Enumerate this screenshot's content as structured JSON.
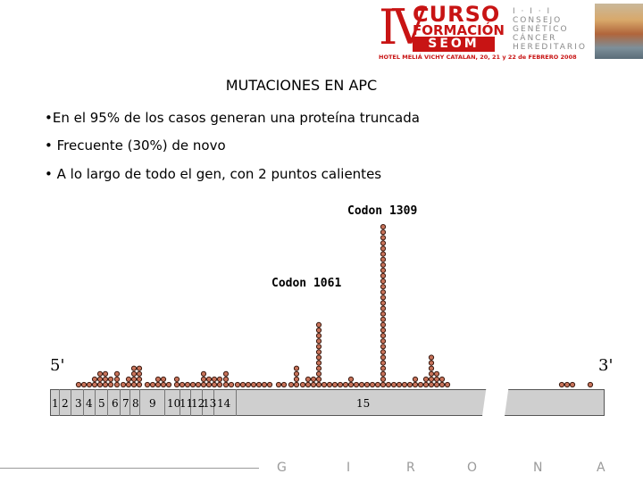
{
  "header": {
    "roman": "IV",
    "curso": "CURSO",
    "formacion": "FORMACIÓN",
    "seom": "SEOM",
    "hotel": "HOTEL MELIÁ VICHY CATALAN, 20, 21 y 22 de FEBRERO 2008",
    "consejo_lines": [
      "I · I · I",
      "CONSEJO",
      "GENÉTICO",
      "CÁNCER",
      "HEREDITARIO"
    ]
  },
  "slide": {
    "title": "MUTACIONES EN APC",
    "bullets": [
      "•En el 95% de los casos generan una proteína  truncada",
      "• Frecuente (30%) de novo",
      "• A lo largo de todo el gen, con 2 puntos calientes"
    ],
    "codon_1309": "Codon 1309",
    "codon_1061": "Codon 1061",
    "five_prime": "5'",
    "three_prime": "3'",
    "exons": [
      "1",
      "2",
      "3",
      "4",
      "5",
      "6",
      "7",
      "8",
      "9",
      "10",
      "11",
      "12",
      "13",
      "14",
      "15"
    ]
  },
  "footer": {
    "letters": [
      "G",
      "I",
      "R",
      "O",
      "N",
      "A"
    ]
  },
  "colors": {
    "brand_red": "#c81414",
    "dot_fill": "#c8735a",
    "dot_stroke": "#3a1a10",
    "gene_fill": "#cfcfcf"
  }
}
